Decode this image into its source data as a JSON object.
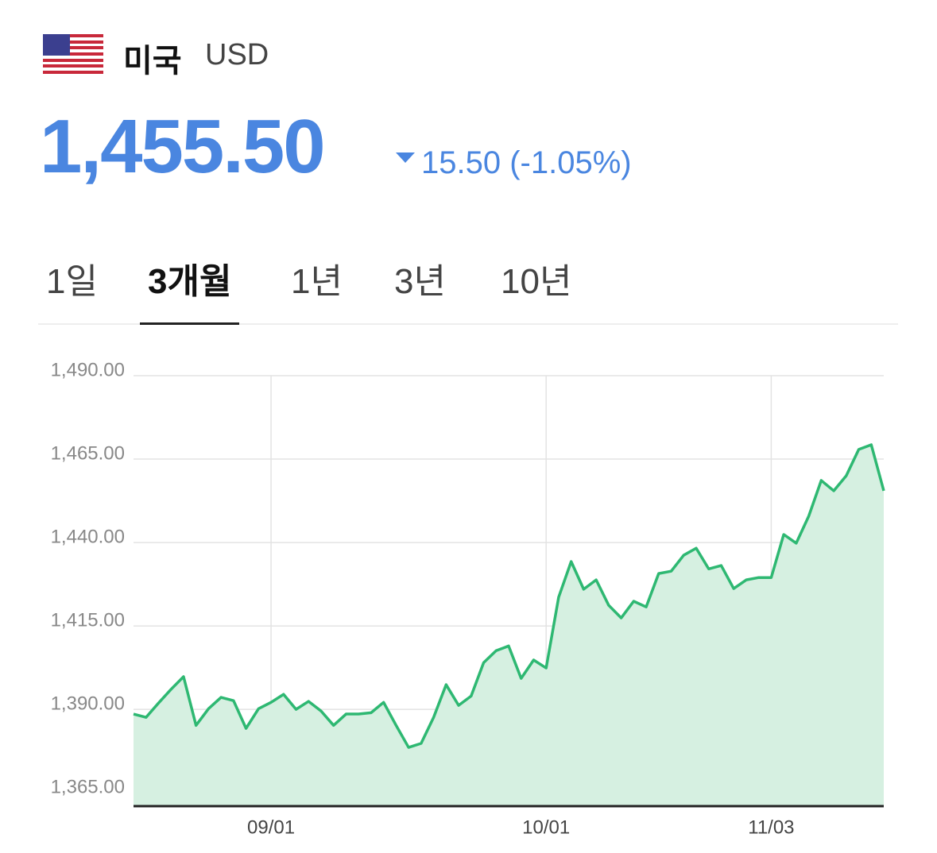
{
  "header": {
    "country": "미국",
    "currency": "USD",
    "price": "1,455.50",
    "change": "15.50 (-1.05%)"
  },
  "tabs": [
    "1일",
    "3개월",
    "1년",
    "3년",
    "10년"
  ],
  "active_tab": 1,
  "chart_data": {
    "type": "area",
    "color": "#2eb872",
    "fill": "#d6f0e1",
    "categories": [
      null,
      null,
      null,
      null,
      null,
      null,
      null,
      null,
      null,
      null,
      null,
      "09/01",
      null,
      null,
      null,
      null,
      null,
      null,
      null,
      null,
      null,
      null,
      null,
      null,
      null,
      null,
      null,
      null,
      null,
      null,
      null,
      null,
      null,
      "10/01",
      null,
      null,
      null,
      null,
      null,
      null,
      null,
      null,
      null,
      null,
      null,
      null,
      null,
      null,
      null,
      null,
      null,
      "11/03",
      null,
      null,
      null,
      null,
      null,
      null,
      null,
      null,
      null
    ],
    "values": [
      1388.6,
      1387.6,
      1391.9,
      1396,
      1399.8,
      1385.2,
      1390.2,
      1393.6,
      1392.6,
      1384.3,
      1390.2,
      1392.1,
      1394.5,
      1390,
      1392.4,
      1389.5,
      1385.2,
      1388.6,
      1388.6,
      1389,
      1392.1,
      1385.2,
      1378.6,
      1379.8,
      1387.6,
      1397.4,
      1391.2,
      1394,
      1404,
      1407.6,
      1409,
      1399.3,
      1404.8,
      1402.4,
      1423.6,
      1434.3,
      1426,
      1428.8,
      1421.2,
      1417.4,
      1422.4,
      1420.7,
      1430.7,
      1431.4,
      1436.2,
      1438.3,
      1432.1,
      1433.1,
      1426.2,
      1428.8,
      1429.5,
      1429.5,
      1442.4,
      1439.8,
      1447.9,
      1458.6,
      1455.5,
      1460,
      1467.9,
      1469.3,
      1455.5
    ],
    "ylim": [
      1361,
      1490
    ],
    "yticks": [
      {
        "value": 1365,
        "label": "1,365.00"
      },
      {
        "value": 1390,
        "label": "1,390.00"
      },
      {
        "value": 1415,
        "label": "1,415.00"
      },
      {
        "value": 1440,
        "label": "1,440.00"
      },
      {
        "value": 1465,
        "label": "1,465.00"
      },
      {
        "value": 1490,
        "label": "1,490.00"
      }
    ],
    "grid": true
  }
}
